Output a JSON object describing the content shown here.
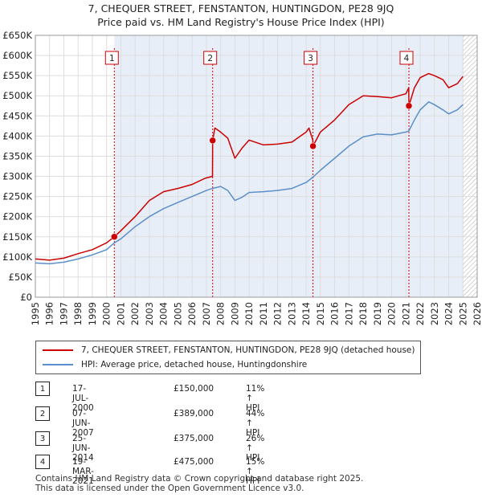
{
  "title_line1": "7, CHEQUER STREET, FENSTANTON, HUNTINGDON, PE28 9JQ",
  "title_line2": "Price paid vs. HM Land Registry's House Price Index (HPI)",
  "colors": {
    "property": "#cc0000",
    "hpi": "#5b8fc9",
    "shade": "#e8eef8",
    "grid": "#dddddd"
  },
  "chart_data": {
    "type": "line",
    "xlim": [
      1995,
      2026
    ],
    "ylim": [
      0,
      650000
    ],
    "y_ticks": [
      {
        "value": 0,
        "label": "£0"
      },
      {
        "value": 50000,
        "label": "£50K"
      },
      {
        "value": 100000,
        "label": "£100K"
      },
      {
        "value": 150000,
        "label": "£150K"
      },
      {
        "value": 200000,
        "label": "£200K"
      },
      {
        "value": 250000,
        "label": "£250K"
      },
      {
        "value": 300000,
        "label": "£300K"
      },
      {
        "value": 350000,
        "label": "£350K"
      },
      {
        "value": 400000,
        "label": "£400K"
      },
      {
        "value": 450000,
        "label": "£450K"
      },
      {
        "value": 500000,
        "label": "£500K"
      },
      {
        "value": 550000,
        "label": "£550K"
      },
      {
        "value": 600000,
        "label": "£600K"
      },
      {
        "value": 650000,
        "label": "£650K"
      }
    ],
    "x_ticks": [
      "1995",
      "1996",
      "1997",
      "1998",
      "1999",
      "2000",
      "2001",
      "2002",
      "2003",
      "2004",
      "2005",
      "2006",
      "2007",
      "2008",
      "2009",
      "2010",
      "2011",
      "2012",
      "2013",
      "2014",
      "2015",
      "2016",
      "2017",
      "2018",
      "2019",
      "2020",
      "2021",
      "2022",
      "2023",
      "2024",
      "2025",
      "2026"
    ],
    "future_start": 2025.0,
    "series": [
      {
        "name": "7, CHEQUER STREET, FENSTANTON, HUNTINGDON, PE28 9JQ (detached house)",
        "key": "property",
        "points": [
          [
            1995,
            95000
          ],
          [
            1996,
            92000
          ],
          [
            1997,
            97000
          ],
          [
            1998,
            108000
          ],
          [
            1999,
            118000
          ],
          [
            2000,
            135000
          ],
          [
            2000.54,
            150000
          ],
          [
            2001,
            165000
          ],
          [
            2002,
            200000
          ],
          [
            2003,
            240000
          ],
          [
            2004,
            262000
          ],
          [
            2005,
            270000
          ],
          [
            2006,
            280000
          ],
          [
            2006.9,
            295000
          ],
          [
            2007.43,
            300000
          ],
          [
            2007.44,
            389000
          ],
          [
            2007.6,
            420000
          ],
          [
            2008,
            410000
          ],
          [
            2008.5,
            395000
          ],
          [
            2009,
            345000
          ],
          [
            2009.5,
            370000
          ],
          [
            2010,
            390000
          ],
          [
            2011,
            378000
          ],
          [
            2012,
            380000
          ],
          [
            2013,
            385000
          ],
          [
            2014,
            410000
          ],
          [
            2014.2,
            420000
          ],
          [
            2014.47,
            390000
          ],
          [
            2014.48,
            375000
          ],
          [
            2015,
            410000
          ],
          [
            2016,
            440000
          ],
          [
            2017,
            478000
          ],
          [
            2018,
            500000
          ],
          [
            2019,
            498000
          ],
          [
            2020,
            495000
          ],
          [
            2021,
            505000
          ],
          [
            2021.2,
            520000
          ],
          [
            2021.21,
            475000
          ],
          [
            2021.6,
            520000
          ],
          [
            2022,
            545000
          ],
          [
            2022.6,
            555000
          ],
          [
            2023,
            550000
          ],
          [
            2023.6,
            540000
          ],
          [
            2024,
            520000
          ],
          [
            2024.6,
            530000
          ],
          [
            2025,
            548000
          ]
        ]
      },
      {
        "name": "HPI: Average price, detached house, Huntingdonshire",
        "key": "hpi",
        "points": [
          [
            1995,
            85000
          ],
          [
            1996,
            83000
          ],
          [
            1997,
            87000
          ],
          [
            1998,
            95000
          ],
          [
            1999,
            105000
          ],
          [
            2000,
            118000
          ],
          [
            2000.54,
            135000
          ],
          [
            2001,
            145000
          ],
          [
            2002,
            175000
          ],
          [
            2003,
            200000
          ],
          [
            2004,
            220000
          ],
          [
            2005,
            235000
          ],
          [
            2006,
            250000
          ],
          [
            2007,
            265000
          ],
          [
            2007.43,
            270000
          ],
          [
            2008,
            275000
          ],
          [
            2008.5,
            265000
          ],
          [
            2009,
            240000
          ],
          [
            2009.5,
            248000
          ],
          [
            2010,
            260000
          ],
          [
            2011,
            262000
          ],
          [
            2012,
            265000
          ],
          [
            2013,
            270000
          ],
          [
            2014,
            285000
          ],
          [
            2014.48,
            298000
          ],
          [
            2015,
            315000
          ],
          [
            2016,
            345000
          ],
          [
            2017,
            375000
          ],
          [
            2018,
            398000
          ],
          [
            2019,
            405000
          ],
          [
            2020,
            403000
          ],
          [
            2021,
            410000
          ],
          [
            2021.21,
            413000
          ],
          [
            2021.6,
            440000
          ],
          [
            2022,
            465000
          ],
          [
            2022.6,
            485000
          ],
          [
            2023,
            478000
          ],
          [
            2023.6,
            465000
          ],
          [
            2024,
            455000
          ],
          [
            2024.6,
            465000
          ],
          [
            2025,
            478000
          ]
        ]
      }
    ],
    "sales": [
      {
        "num": "1",
        "x": 2000.54,
        "value": 150000,
        "date": "17-JUL-2000",
        "price": "£150,000",
        "hpi": "11% ↑ HPI"
      },
      {
        "num": "2",
        "x": 2007.44,
        "value": 389000,
        "date": "07-JUN-2007",
        "price": "£389,000",
        "hpi": "44% ↑ HPI"
      },
      {
        "num": "3",
        "x": 2014.48,
        "value": 375000,
        "date": "25-JUN-2014",
        "price": "£375,000",
        "hpi": "26% ↑ HPI"
      },
      {
        "num": "4",
        "x": 2021.21,
        "value": 475000,
        "date": "19-MAR-2021",
        "price": "£475,000",
        "hpi": "15% ↑ HPI"
      }
    ]
  },
  "legend": {
    "property": "7, CHEQUER STREET, FENSTANTON, HUNTINGDON, PE28 9JQ (detached house)",
    "hpi": "HPI: Average price, detached house, Huntingdonshire"
  },
  "footer_line1": "Contains HM Land Registry data © Crown copyright and database right 2025.",
  "footer_line2": "This data is licensed under the Open Government Licence v3.0."
}
